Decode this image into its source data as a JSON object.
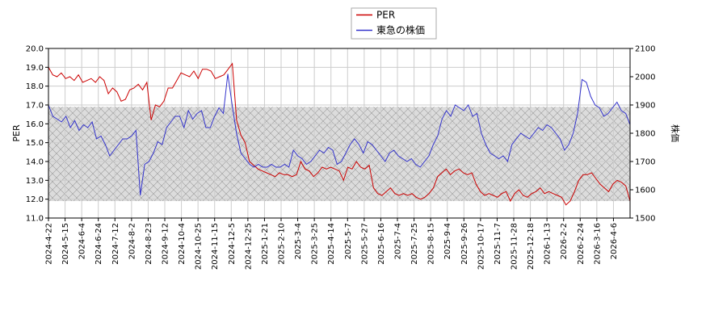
{
  "chart_data": {
    "type": "line",
    "title": "",
    "legend": {
      "position": "top-center",
      "entries": [
        {
          "name": "PER",
          "color": "#cc0000"
        },
        {
          "name": "東急の株価",
          "color": "#3333cc"
        }
      ]
    },
    "y_left": {
      "label": "PER",
      "range": [
        11.0,
        20.0
      ],
      "ticks": [
        "11.0",
        "12.0",
        "13.0",
        "14.0",
        "15.0",
        "16.0",
        "17.0",
        "18.0",
        "19.0",
        "20.0"
      ]
    },
    "y_right": {
      "label": "株価",
      "range": [
        1500,
        2100
      ],
      "ticks": [
        "1500",
        "1600",
        "1700",
        "1800",
        "1900",
        "2000",
        "2100"
      ]
    },
    "x_ticks": [
      "2024-4-22",
      "2024-5-15",
      "2024-6-4",
      "2024-6-24",
      "2024-7-12",
      "2024-8-2",
      "2024-8-23",
      "2024-9-12",
      "2024-10-4",
      "2024-10-25",
      "2024-11-15",
      "2024-12-5",
      "2024-12-25",
      "2025-1-21",
      "2025-2-10",
      "2025-3-4",
      "2025-3-25",
      "2025-4-14",
      "2025-5-7",
      "2025-5-27",
      "2025-6-16",
      "2025-7-4",
      "2025-7-25",
      "2025-8-15",
      "2025-9-4",
      "2025-9-26",
      "2025-10-17",
      "2025-11-7",
      "2025-11-28",
      "2025-12-18",
      "2026-1-13",
      "2026-2-2",
      "2026-2-24",
      "2026-3-16",
      "2026-4-6"
    ],
    "shaded_band": {
      "axis": "left",
      "range": [
        11.9,
        16.9
      ]
    },
    "grid": true,
    "series": [
      {
        "name": "PER",
        "axis": "left",
        "color": "#cc0000",
        "values": [
          19.0,
          18.6,
          18.5,
          18.7,
          18.4,
          18.5,
          18.3,
          18.6,
          18.2,
          18.3,
          18.4,
          18.2,
          18.5,
          18.3,
          17.6,
          17.9,
          17.7,
          17.2,
          17.3,
          17.8,
          17.9,
          18.1,
          17.8,
          18.2,
          16.2,
          17.0,
          16.9,
          17.2,
          17.9,
          17.9,
          18.3,
          18.7,
          18.6,
          18.5,
          18.8,
          18.4,
          18.9,
          18.9,
          18.8,
          18.4,
          18.5,
          18.6,
          18.9,
          19.2,
          16.2,
          15.4,
          15.0,
          14.0,
          13.8,
          13.6,
          13.5,
          13.4,
          13.3,
          13.2,
          13.4,
          13.3,
          13.3,
          13.2,
          13.3,
          14.0,
          13.6,
          13.5,
          13.2,
          13.4,
          13.7,
          13.6,
          13.7,
          13.6,
          13.5,
          13.0,
          13.7,
          13.6,
          14.0,
          13.7,
          13.6,
          13.8,
          12.6,
          12.3,
          12.2,
          12.4,
          12.6,
          12.3,
          12.2,
          12.3,
          12.2,
          12.3,
          12.1,
          12.0,
          12.1,
          12.3,
          12.6,
          13.2,
          13.4,
          13.6,
          13.3,
          13.5,
          13.6,
          13.4,
          13.3,
          13.4,
          12.8,
          12.4,
          12.2,
          12.3,
          12.2,
          12.1,
          12.3,
          12.4,
          11.9,
          12.3,
          12.5,
          12.2,
          12.1,
          12.3,
          12.4,
          12.6,
          12.3,
          12.4,
          12.3,
          12.2,
          12.1,
          11.7,
          11.9,
          12.4,
          13.0,
          13.3,
          13.3,
          13.4,
          13.1,
          12.8,
          12.6,
          12.4,
          12.8,
          13.0,
          12.9,
          12.7,
          11.9
        ]
      },
      {
        "name": "東急の株価",
        "axis": "right",
        "color": "#3333cc",
        "values": [
          1900,
          1860,
          1850,
          1840,
          1860,
          1820,
          1845,
          1810,
          1830,
          1820,
          1840,
          1780,
          1790,
          1760,
          1720,
          1740,
          1760,
          1780,
          1780,
          1790,
          1810,
          1580,
          1690,
          1700,
          1730,
          1770,
          1760,
          1820,
          1840,
          1860,
          1860,
          1820,
          1880,
          1850,
          1870,
          1880,
          1820,
          1820,
          1860,
          1890,
          1870,
          2010,
          1900,
          1800,
          1730,
          1710,
          1690,
          1680,
          1690,
          1680,
          1680,
          1690,
          1680,
          1680,
          1690,
          1680,
          1740,
          1720,
          1710,
          1690,
          1700,
          1720,
          1740,
          1730,
          1750,
          1740,
          1690,
          1700,
          1730,
          1760,
          1780,
          1760,
          1730,
          1770,
          1760,
          1740,
          1720,
          1700,
          1730,
          1740,
          1720,
          1710,
          1700,
          1710,
          1690,
          1680,
          1700,
          1720,
          1760,
          1790,
          1850,
          1880,
          1860,
          1900,
          1890,
          1880,
          1900,
          1860,
          1870,
          1800,
          1760,
          1730,
          1720,
          1710,
          1720,
          1700,
          1760,
          1780,
          1800,
          1790,
          1780,
          1800,
          1820,
          1810,
          1830,
          1820,
          1800,
          1780,
          1740,
          1760,
          1800,
          1870,
          1990,
          1980,
          1930,
          1900,
          1890,
          1860,
          1870,
          1890,
          1910,
          1880,
          1870,
          1830
        ]
      }
    ]
  }
}
